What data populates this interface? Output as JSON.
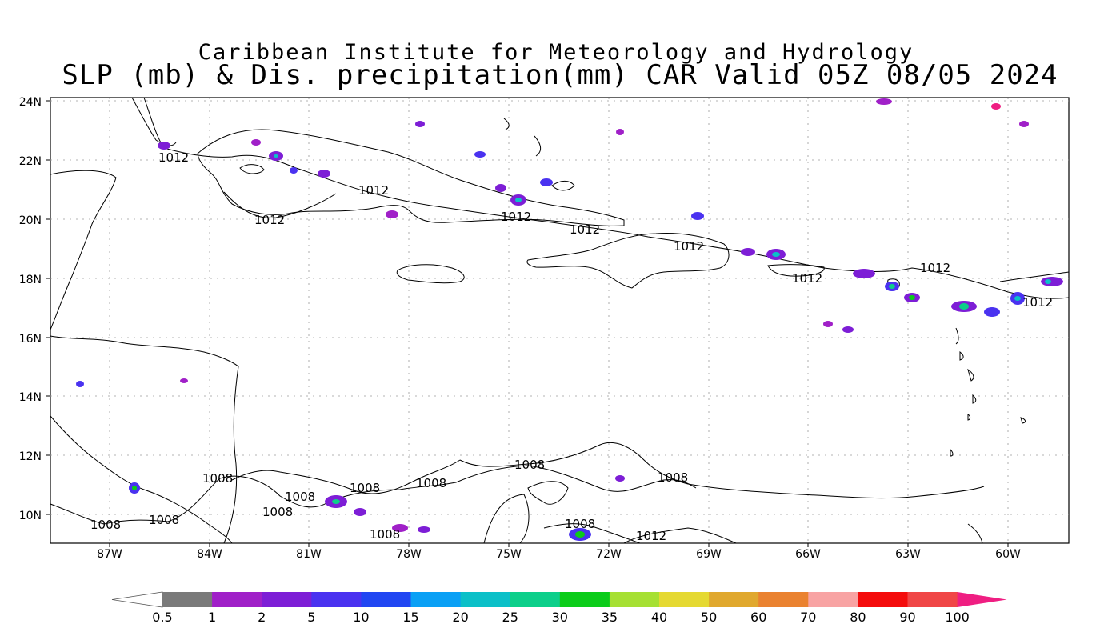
{
  "header": {
    "line1": "Caribbean Institute for Meteorology and Hydrology",
    "line2": "SLP (mb) & Dis. precipitation(mm) CAR Valid 05Z 08/05 2024"
  },
  "map": {
    "lat_labels": [
      "24N",
      "22N",
      "20N",
      "18N",
      "16N",
      "14N",
      "12N",
      "10N"
    ],
    "lon_labels": [
      "87W",
      "84W",
      "81W",
      "78W",
      "75W",
      "72W",
      "69W",
      "66W",
      "63W",
      "60W"
    ],
    "isobars": [
      {
        "label": "1012"
      },
      {
        "label": "1012"
      },
      {
        "label": "1012"
      },
      {
        "label": "1012"
      },
      {
        "label": "1012"
      },
      {
        "label": "1012"
      },
      {
        "label": "1012"
      },
      {
        "label": "1012"
      },
      {
        "label": "1012"
      },
      {
        "label": "1012"
      },
      {
        "label": "1008"
      },
      {
        "label": "1008"
      },
      {
        "label": "1008"
      },
      {
        "label": "1008"
      },
      {
        "label": "1008"
      },
      {
        "label": "1008"
      },
      {
        "label": "1008"
      },
      {
        "label": "1008"
      },
      {
        "label": "1008"
      },
      {
        "label": "1008"
      },
      {
        "label": "1012"
      }
    ]
  },
  "colorbar": {
    "labels": [
      "0.5",
      "1",
      "2",
      "5",
      "10",
      "15",
      "20",
      "25",
      "30",
      "35",
      "40",
      "50",
      "60",
      "70",
      "80",
      "90",
      "100"
    ],
    "colors": [
      "#ffffff",
      "#7a7a7a",
      "#a020c8",
      "#7d1ed6",
      "#4a32f0",
      "#2146f2",
      "#0aa0f5",
      "#0bc0c8",
      "#0ccf8a",
      "#0bcc1a",
      "#a6e033",
      "#e5d932",
      "#e0a82e",
      "#ea8230",
      "#f8a3a3",
      "#f40c0c",
      "#f04646",
      "#ef1e82"
    ]
  }
}
